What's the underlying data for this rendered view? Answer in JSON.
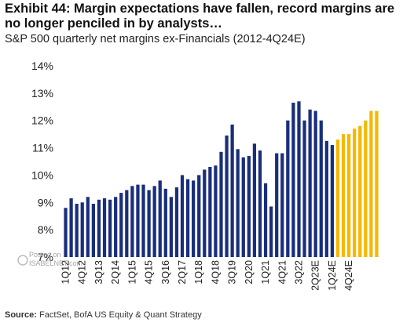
{
  "header": {
    "title": "Exhibit 44: Margin expectations have fallen, record margins are no longer penciled in by analysts…",
    "subtitle": "S&P 500 quarterly net margins ex-Financials (2012-4Q24E)"
  },
  "source": {
    "label": "Source:",
    "text": "FactSet, BofA US Equity & Quant Strategy"
  },
  "watermark": {
    "line1": "Posted on",
    "line2": "ISABELNET.com"
  },
  "colors": {
    "actual": "#1a2f7a",
    "estimate": "#f5b800"
  },
  "chart_data": {
    "type": "bar",
    "title": "S&P 500 quarterly net margins ex-Financials (2012-4Q24E)",
    "ylim": [
      7,
      14
    ],
    "yticks": [
      "7%",
      "8%",
      "9%",
      "10%",
      "11%",
      "12%",
      "13%",
      "14%"
    ],
    "xtick_labels": [
      "1Q12",
      "4Q12",
      "3Q13",
      "2Q14",
      "1Q15",
      "4Q15",
      "3Q16",
      "2Q17",
      "1Q18",
      "4Q18",
      "3Q19",
      "2Q20",
      "1Q21",
      "4Q21",
      "3Q22",
      "2Q23E",
      "1Q24E",
      "4Q24E"
    ],
    "legend": "none",
    "grid": false,
    "series": [
      {
        "values": [
          8.8,
          9.15,
          8.95,
          9.0,
          9.2,
          8.95,
          9.1,
          9.15,
          9.1,
          9.2,
          9.35,
          9.45,
          9.6,
          9.65,
          9.65,
          9.45,
          9.6,
          9.8,
          9.5,
          9.2,
          9.55,
          10.0,
          9.85,
          9.8,
          10.0,
          10.2,
          10.3,
          10.35,
          10.85,
          11.45,
          11.85,
          10.95,
          10.65,
          10.7,
          11.15,
          10.9,
          9.7,
          8.85,
          10.8,
          10.8,
          12.0,
          12.65,
          12.7,
          12.0,
          12.4,
          12.35,
          12.0,
          11.25,
          11.1
        ]
      },
      {
        "values": [
          11.3,
          11.5,
          11.5,
          11.7,
          11.8,
          12.0,
          12.35,
          12.35
        ]
      }
    ]
  }
}
